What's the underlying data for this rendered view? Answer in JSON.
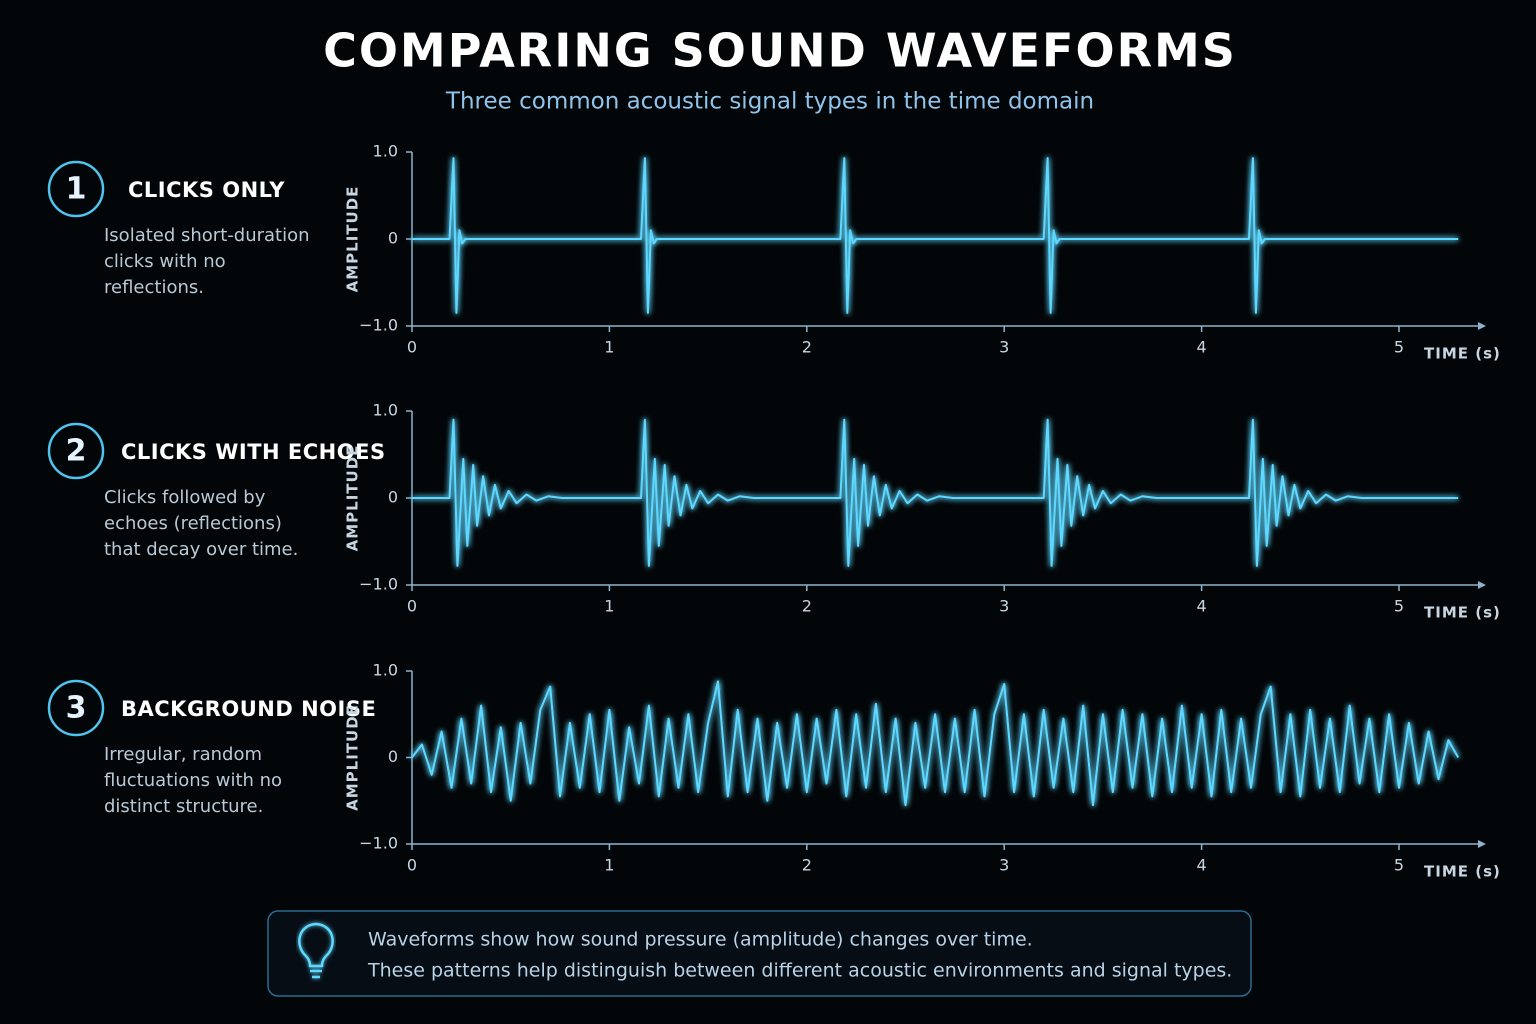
{
  "title": "COMPARING SOUND WAVEFORMS",
  "subtitle": "Three common acoustic signal types in the time domain",
  "note": [
    "Waveforms show how sound pressure (amplitude) changes over time.",
    "These patterns help distinguish between different acoustic environments and signal types."
  ],
  "chart_data": [
    {
      "type": "line",
      "number": "1",
      "title": "CLICKS ONLY",
      "description": [
        "Isolated short-duration",
        "clicks with no",
        "reflections."
      ],
      "xlabel": "TIME (s)",
      "ylabel": "AMPLITUDE",
      "color": "#5fd8ff",
      "xlim": [
        0,
        5.4
      ],
      "ylim": [
        -1,
        1
      ],
      "xticks": [
        0,
        1,
        2,
        3,
        4,
        5
      ],
      "yticks": [
        {
          "value": 1,
          "label": "1.0"
        },
        0,
        {
          "value": -1,
          "label": "−1.0"
        }
      ],
      "x": [
        0,
        0.19,
        0.21,
        0.225,
        0.24,
        0.255,
        0.27,
        1.16,
        1.18,
        1.195,
        1.21,
        1.225,
        1.24,
        2.17,
        2.19,
        2.205,
        2.22,
        2.235,
        2.25,
        3.2,
        3.22,
        3.235,
        3.25,
        3.265,
        3.28,
        4.24,
        4.26,
        4.275,
        4.29,
        4.305,
        4.32,
        5.3
      ],
      "values": [
        0,
        0,
        0.93,
        -0.85,
        0.1,
        -0.05,
        0,
        0,
        0.93,
        -0.85,
        0.1,
        -0.05,
        0,
        0,
        0.93,
        -0.85,
        0.1,
        -0.05,
        0,
        0,
        0.93,
        -0.85,
        0.1,
        -0.05,
        0,
        0,
        0.93,
        -0.85,
        0.1,
        -0.05,
        0,
        0
      ]
    },
    {
      "type": "line",
      "number": "2",
      "title": "CLICKS WITH ECHOES",
      "description": [
        "Clicks followed by",
        "echoes (reflections)",
        "that decay over time."
      ],
      "xlabel": "TIME (s)",
      "ylabel": "AMPLITUDE",
      "color": "#5fd8ff",
      "xlim": [
        0,
        5.4
      ],
      "ylim": [
        -1,
        1
      ],
      "xticks": [
        0,
        1,
        2,
        3,
        4,
        5
      ],
      "yticks": [
        {
          "value": 1,
          "label": "1.0"
        },
        0,
        {
          "value": -1,
          "label": "−1.0"
        }
      ],
      "x": [
        0,
        0.19,
        0.21,
        0.23,
        0.26,
        0.28,
        0.31,
        0.33,
        0.36,
        0.39,
        0.42,
        0.45,
        0.49,
        0.53,
        0.58,
        0.63,
        0.69,
        0.76,
        1.16,
        1.18,
        1.2,
        1.23,
        1.25,
        1.28,
        1.3,
        1.33,
        1.36,
        1.39,
        1.42,
        1.46,
        1.5,
        1.55,
        1.6,
        1.66,
        1.73,
        2.17,
        2.19,
        2.21,
        2.24,
        2.26,
        2.29,
        2.31,
        2.34,
        2.37,
        2.4,
        2.43,
        2.47,
        2.51,
        2.56,
        2.61,
        2.67,
        2.74,
        3.2,
        3.22,
        3.24,
        3.27,
        3.29,
        3.32,
        3.34,
        3.37,
        3.4,
        3.43,
        3.46,
        3.5,
        3.54,
        3.59,
        3.64,
        3.7,
        3.77,
        4.24,
        4.26,
        4.28,
        4.31,
        4.33,
        4.36,
        4.38,
        4.41,
        4.44,
        4.47,
        4.5,
        4.54,
        4.58,
        4.63,
        4.68,
        4.74,
        4.81,
        5.3
      ],
      "values": [
        0,
        0,
        0.9,
        -0.78,
        0.45,
        -0.55,
        0.38,
        -0.32,
        0.25,
        -0.2,
        0.15,
        -0.12,
        0.08,
        -0.06,
        0.04,
        -0.03,
        0.02,
        0,
        0,
        0.9,
        -0.78,
        0.45,
        -0.55,
        0.38,
        -0.32,
        0.25,
        -0.2,
        0.15,
        -0.12,
        0.08,
        -0.06,
        0.04,
        -0.03,
        0.02,
        0,
        0,
        0.9,
        -0.78,
        0.45,
        -0.55,
        0.38,
        -0.32,
        0.25,
        -0.2,
        0.15,
        -0.12,
        0.08,
        -0.06,
        0.04,
        -0.03,
        0.02,
        0,
        0,
        0.9,
        -0.78,
        0.45,
        -0.55,
        0.38,
        -0.32,
        0.25,
        -0.2,
        0.15,
        -0.12,
        0.08,
        -0.06,
        0.04,
        -0.03,
        0.02,
        0,
        0,
        0.9,
        -0.78,
        0.45,
        -0.55,
        0.38,
        -0.32,
        0.25,
        -0.2,
        0.15,
        -0.12,
        0.08,
        -0.06,
        0.04,
        -0.03,
        0.02,
        0,
        0
      ]
    },
    {
      "type": "line",
      "number": "3",
      "title": "BACKGROUND NOISE",
      "description": [
        "Irregular, random",
        "fluctuations with no",
        "distinct structure."
      ],
      "xlabel": "TIME (s)",
      "ylabel": "AMPLITUDE",
      "color": "#5fd8ff",
      "xlim": [
        0,
        5.4
      ],
      "ylim": [
        -1,
        1
      ],
      "xticks": [
        0,
        1,
        2,
        3,
        4,
        5
      ],
      "yticks": [
        {
          "value": 1,
          "label": "1.0"
        },
        0,
        {
          "value": -1,
          "label": "−1.0"
        }
      ],
      "x": [
        0,
        0.05,
        0.1,
        0.15,
        0.2,
        0.25,
        0.3,
        0.35,
        0.4,
        0.45,
        0.5,
        0.55,
        0.6,
        0.65,
        0.7,
        0.75,
        0.8,
        0.85,
        0.9,
        0.95,
        1,
        1.05,
        1.1,
        1.15,
        1.2,
        1.25,
        1.3,
        1.35,
        1.4,
        1.45,
        1.5,
        1.55,
        1.6,
        1.65,
        1.7,
        1.75,
        1.8,
        1.85,
        1.9,
        1.95,
        2,
        2.05,
        2.1,
        2.15,
        2.2,
        2.25,
        2.3,
        2.35,
        2.4,
        2.45,
        2.5,
        2.55,
        2.6,
        2.65,
        2.7,
        2.75,
        2.8,
        2.85,
        2.9,
        2.95,
        3,
        3.05,
        3.1,
        3.15,
        3.2,
        3.25,
        3.3,
        3.35,
        3.4,
        3.45,
        3.5,
        3.55,
        3.6,
        3.65,
        3.7,
        3.75,
        3.8,
        3.85,
        3.9,
        3.95,
        4,
        4.05,
        4.1,
        4.15,
        4.2,
        4.25,
        4.3,
        4.35,
        4.4,
        4.45,
        4.5,
        4.55,
        4.6,
        4.65,
        4.7,
        4.75,
        4.8,
        4.85,
        4.9,
        4.95,
        5,
        5.05,
        5.1,
        5.15,
        5.2,
        5.25,
        5.3
      ],
      "values": [
        0,
        0.15,
        -0.2,
        0.3,
        -0.35,
        0.45,
        -0.3,
        0.6,
        -0.4,
        0.35,
        -0.5,
        0.4,
        -0.3,
        0.55,
        0.82,
        -0.45,
        0.4,
        -0.35,
        0.5,
        -0.4,
        0.55,
        -0.5,
        0.35,
        -0.3,
        0.6,
        -0.45,
        0.45,
        -0.35,
        0.5,
        -0.4,
        0.4,
        0.88,
        -0.45,
        0.55,
        -0.4,
        0.45,
        -0.5,
        0.4,
        -0.35,
        0.5,
        -0.4,
        0.45,
        -0.3,
        0.55,
        -0.45,
        0.5,
        -0.35,
        0.62,
        -0.4,
        0.45,
        -0.55,
        0.4,
        -0.35,
        0.5,
        -0.4,
        0.45,
        -0.4,
        0.55,
        -0.45,
        0.5,
        0.85,
        -0.4,
        0.5,
        -0.45,
        0.55,
        -0.35,
        0.45,
        -0.4,
        0.6,
        -0.55,
        0.5,
        -0.4,
        0.55,
        -0.35,
        0.5,
        -0.45,
        0.45,
        -0.4,
        0.6,
        -0.35,
        0.5,
        -0.45,
        0.55,
        -0.4,
        0.45,
        -0.35,
        0.5,
        0.82,
        -0.4,
        0.5,
        -0.45,
        0.55,
        -0.35,
        0.45,
        -0.4,
        0.6,
        -0.3,
        0.45,
        -0.4,
        0.5,
        -0.35,
        0.4,
        -0.3,
        0.3,
        -0.25,
        0.2,
        0
      ]
    }
  ]
}
